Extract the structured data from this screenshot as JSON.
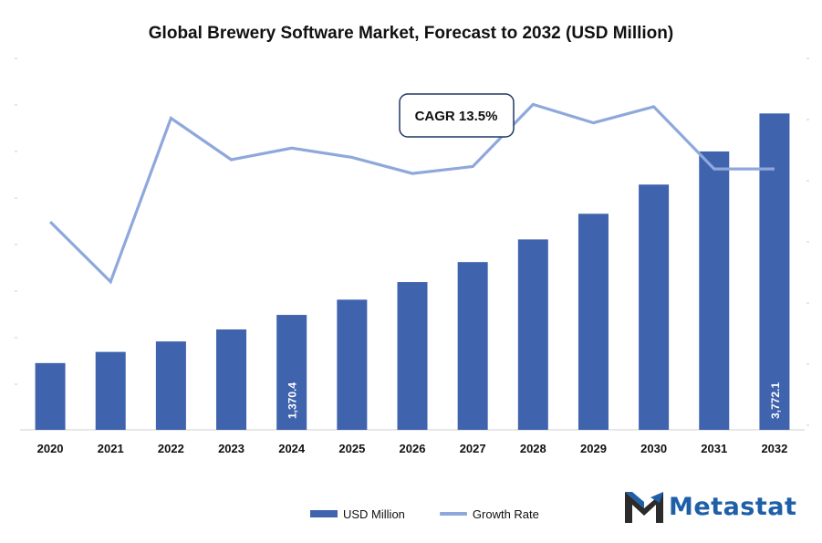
{
  "chart_data": {
    "type": "bar",
    "title": "Global Brewery Software Market, Forecast to 2032 (USD Million)",
    "categories": [
      "2020",
      "2021",
      "2022",
      "2023",
      "2024",
      "2025",
      "2026",
      "2027",
      "2028",
      "2029",
      "2030",
      "2031",
      "2032"
    ],
    "series": [
      {
        "name": "USD Million",
        "type": "bar",
        "color": "#3f63ad",
        "values": [
          796,
          929,
          1054,
          1197,
          1370.4,
          1552,
          1762,
          2000,
          2270,
          2576,
          2924,
          3319,
          3772.1
        ]
      },
      {
        "name": "Growth Rate",
        "type": "line",
        "color": "#8fa8dc",
        "values": [
          12.8,
          10.2,
          17.3,
          15.5,
          16.0,
          15.6,
          14.9,
          15.2,
          17.9,
          17.1,
          17.8,
          15.1,
          15.1
        ]
      }
    ],
    "data_labels": [
      {
        "category": "2024",
        "text": "1,370.4"
      },
      {
        "category": "2032",
        "text": "3,772.1"
      }
    ],
    "annotation": "CAGR 13.5%",
    "legend_position": "bottom",
    "grid": false
  },
  "logo": {
    "name": "metastat-logo",
    "text": "Metastat",
    "color": "#1f5fa8"
  }
}
